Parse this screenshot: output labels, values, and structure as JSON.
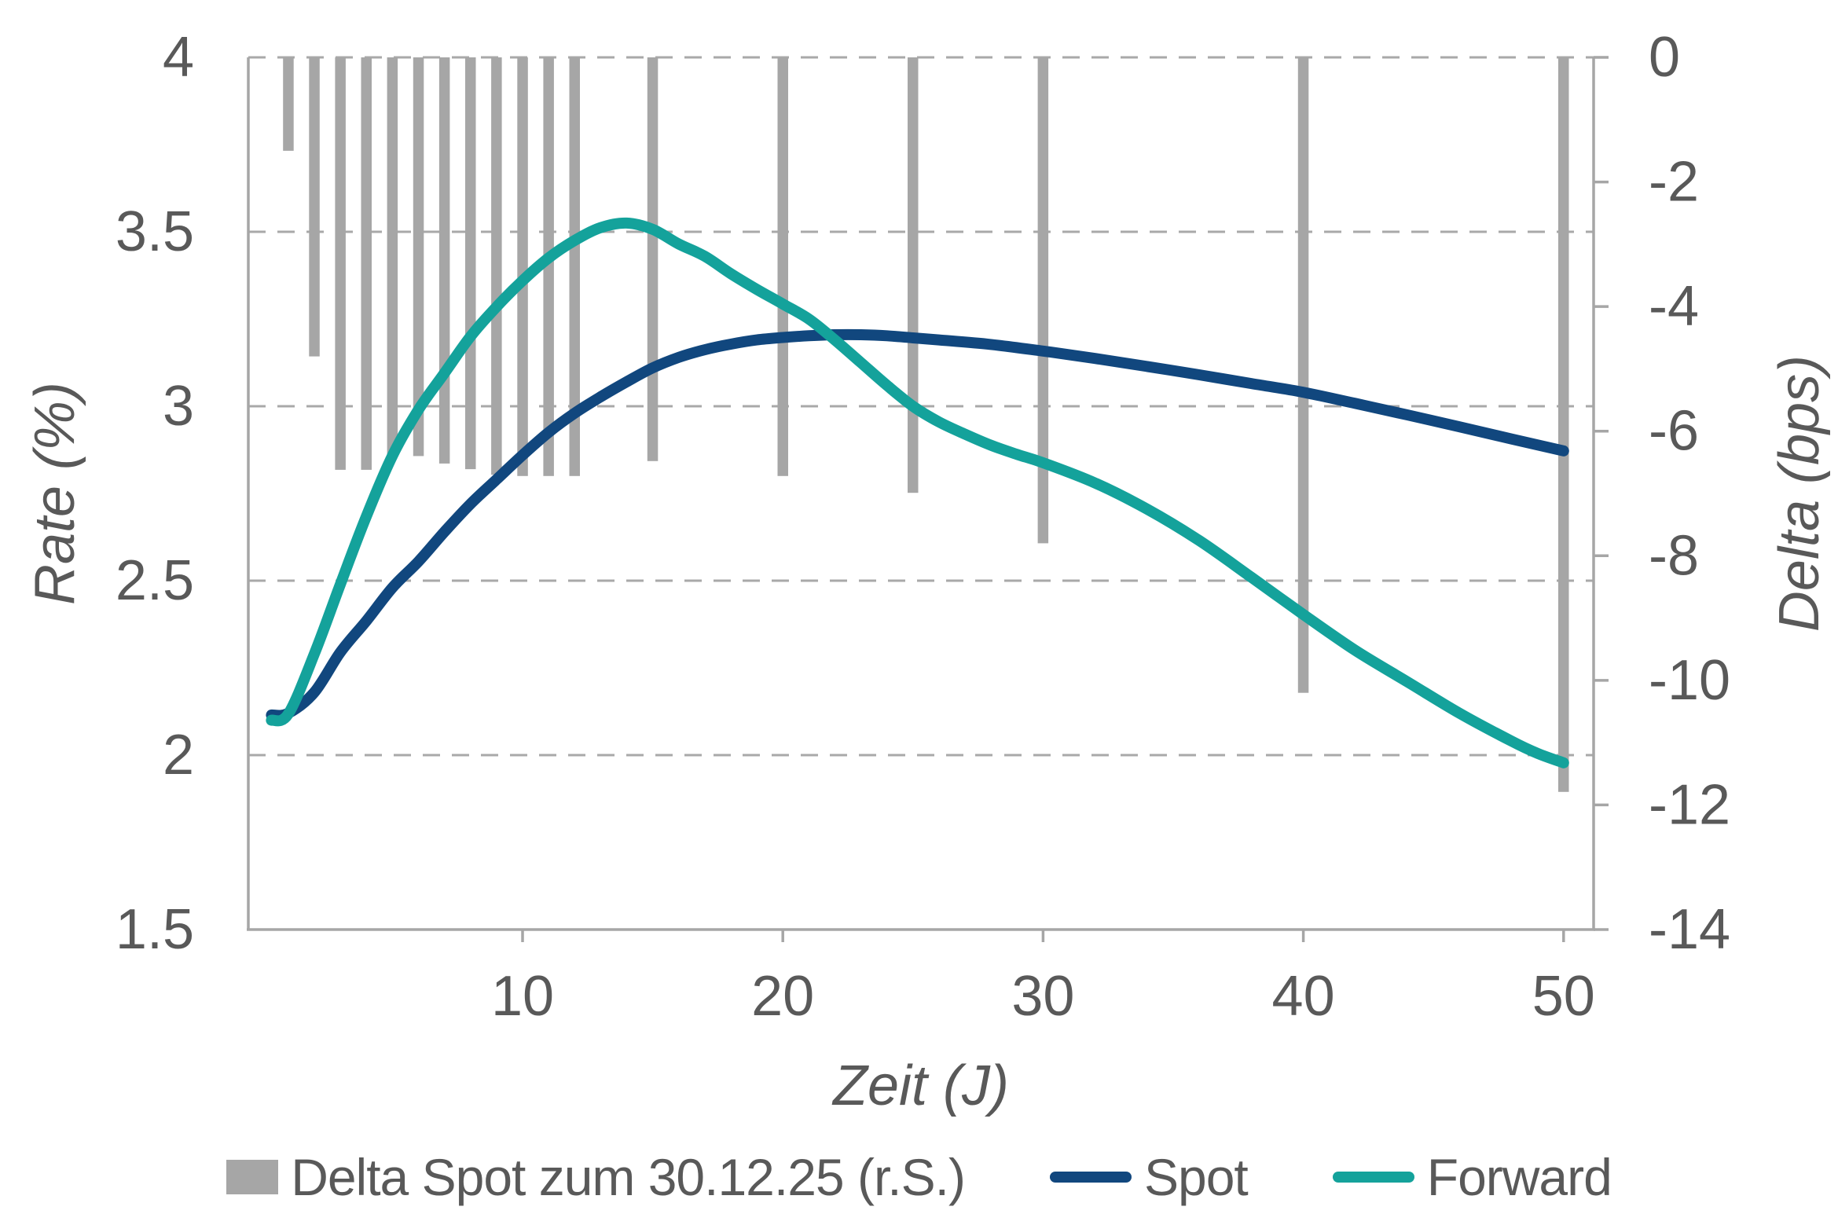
{
  "chart_data": {
    "type": "bar",
    "subtype": "combo-bar-and-lines",
    "title": "",
    "x_axis": {
      "label": "Zeit (J)",
      "tick_values": [
        10,
        20,
        30,
        40,
        50
      ],
      "tick_labels": [
        "10",
        "20",
        "30",
        "40",
        "50"
      ],
      "range_years": [
        0,
        51.2
      ],
      "grid": "off"
    },
    "y_left_axis": {
      "label": "Rate (%)",
      "tick_values": [
        4,
        3.5,
        3,
        2.5,
        2,
        1.5
      ],
      "tick_labels": [
        "4",
        "3.5",
        "3",
        "2.5",
        "2",
        "1.5"
      ],
      "range": [
        1.5,
        4
      ],
      "grid": "dashed-horizontal"
    },
    "y_right_axis": {
      "label": "Delta (bps)",
      "tick_values": [
        0,
        -2,
        -4,
        -6,
        -8,
        -10,
        -12,
        -14
      ],
      "tick_labels": [
        "0",
        "-2",
        "-4",
        "-6",
        "-8",
        "-10",
        "-12",
        "-14"
      ],
      "range": [
        -14,
        0
      ],
      "grid": "off"
    },
    "bar_series": {
      "name": "Delta Spot zum 30.12.25 (r.S.)",
      "axis": "right",
      "color": "#A6A6A6",
      "x": [
        1,
        2,
        3,
        4,
        5,
        6,
        7,
        8,
        9,
        10,
        11,
        12,
        15,
        20,
        25,
        30,
        40,
        50
      ],
      "values": [
        -1.5,
        -4.8,
        -6.62,
        -6.62,
        -6.4,
        -6.4,
        -6.52,
        -6.61,
        -6.7,
        -6.72,
        -6.72,
        -6.72,
        -6.48,
        -6.72,
        -6.99,
        -7.8,
        -10.2,
        -11.79
      ]
    },
    "line_series": [
      {
        "name": "Spot",
        "axis": "left",
        "color": "#11477E",
        "points": [
          [
            0.35,
            2.115
          ],
          [
            1,
            2.12
          ],
          [
            2,
            2.18
          ],
          [
            3,
            2.295
          ],
          [
            4,
            2.385
          ],
          [
            5,
            2.48
          ],
          [
            6,
            2.555
          ],
          [
            7,
            2.64
          ],
          [
            8,
            2.72
          ],
          [
            9,
            2.79
          ],
          [
            10,
            2.86
          ],
          [
            11,
            2.925
          ],
          [
            12,
            2.98
          ],
          [
            13,
            3.027
          ],
          [
            14,
            3.07
          ],
          [
            15,
            3.11
          ],
          [
            16,
            3.14
          ],
          [
            17,
            3.162
          ],
          [
            18,
            3.178
          ],
          [
            19,
            3.19
          ],
          [
            20,
            3.197
          ],
          [
            21,
            3.202
          ],
          [
            22,
            3.205
          ],
          [
            23,
            3.205
          ],
          [
            24,
            3.202
          ],
          [
            25,
            3.196
          ],
          [
            26,
            3.19
          ],
          [
            28,
            3.177
          ],
          [
            30,
            3.158
          ],
          [
            32,
            3.137
          ],
          [
            34,
            3.114
          ],
          [
            36,
            3.09
          ],
          [
            38,
            3.065
          ],
          [
            40,
            3.04
          ],
          [
            42,
            3.008
          ],
          [
            44,
            2.975
          ],
          [
            46,
            2.941
          ],
          [
            48,
            2.906
          ],
          [
            50,
            2.872
          ]
        ]
      },
      {
        "name": "Forward",
        "axis": "left",
        "color": "#14A29B",
        "points": [
          [
            0.35,
            2.1
          ],
          [
            1,
            2.118
          ],
          [
            2,
            2.29
          ],
          [
            3,
            2.49
          ],
          [
            4,
            2.685
          ],
          [
            5,
            2.858
          ],
          [
            6,
            2.99
          ],
          [
            7,
            3.095
          ],
          [
            8,
            3.2
          ],
          [
            9,
            3.285
          ],
          [
            10,
            3.36
          ],
          [
            11,
            3.425
          ],
          [
            12,
            3.475
          ],
          [
            13,
            3.512
          ],
          [
            14,
            3.525
          ],
          [
            15,
            3.507
          ],
          [
            16,
            3.465
          ],
          [
            17,
            3.43
          ],
          [
            18,
            3.38
          ],
          [
            19,
            3.335
          ],
          [
            20,
            3.293
          ],
          [
            21,
            3.25
          ],
          [
            22,
            3.19
          ],
          [
            23,
            3.125
          ],
          [
            24,
            3.06
          ],
          [
            25,
            3.0
          ],
          [
            26,
            2.955
          ],
          [
            27,
            2.92
          ],
          [
            28,
            2.888
          ],
          [
            29,
            2.862
          ],
          [
            30,
            2.838
          ],
          [
            32,
            2.78
          ],
          [
            34,
            2.705
          ],
          [
            36,
            2.615
          ],
          [
            38,
            2.51
          ],
          [
            40,
            2.403
          ],
          [
            42,
            2.3
          ],
          [
            44,
            2.21
          ],
          [
            46,
            2.12
          ],
          [
            48,
            2.04
          ],
          [
            49,
            2.005
          ],
          [
            50,
            1.978
          ]
        ]
      }
    ],
    "legend_position": "bottom",
    "styles": {
      "grid_color": "#A9A9A9",
      "axis_color": "#A6A6A6",
      "text_color": "#595959",
      "background": "#FFFFFF"
    }
  }
}
